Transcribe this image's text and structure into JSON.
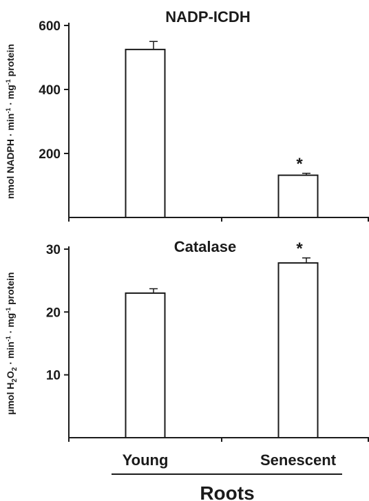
{
  "chart_data": [
    {
      "type": "bar",
      "title": "NADP-ICDH",
      "ylabel_parts": [
        "nmol NADPH · min",
        "-1",
        " · mg",
        "-1",
        " protein"
      ],
      "categories": [
        "Young",
        "Senescent"
      ],
      "values": [
        525,
        132
      ],
      "errors": [
        25,
        6
      ],
      "annotations": [
        "",
        "*"
      ],
      "ylim": [
        0,
        600
      ],
      "yticks": [
        200,
        400,
        600
      ],
      "colors": {
        "bar_fill": "#ffffff",
        "stroke": "#1a1a1a"
      }
    },
    {
      "type": "bar",
      "title": "Catalase",
      "ylabel_parts": [
        "µmol H",
        "2",
        "O",
        "2",
        " · min",
        "-1",
        " · mg",
        "-1",
        " protein"
      ],
      "categories": [
        "Young",
        "Senescent"
      ],
      "values": [
        23.0,
        27.8
      ],
      "errors": [
        0.7,
        0.8
      ],
      "annotations": [
        "",
        "*"
      ],
      "ylim": [
        0,
        30
      ],
      "yticks": [
        10,
        20,
        30
      ],
      "colors": {
        "bar_fill": "#ffffff",
        "stroke": "#1a1a1a"
      }
    }
  ],
  "x_axis": {
    "categories": [
      "Young",
      "Senescent"
    ],
    "group_label": "Roots"
  }
}
